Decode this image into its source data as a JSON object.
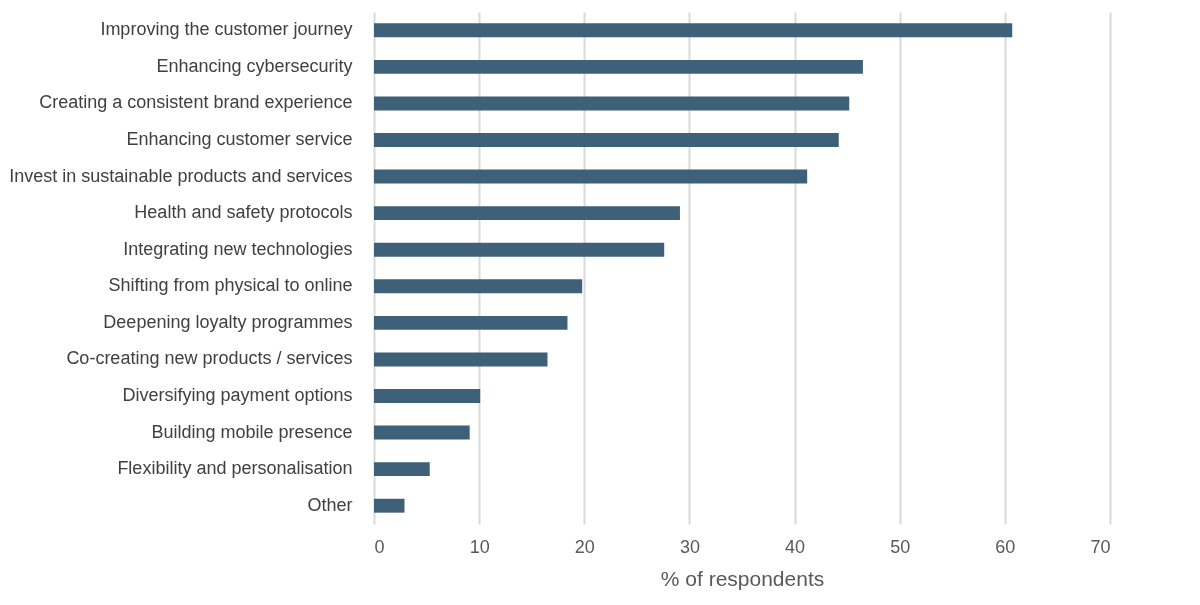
{
  "chart_data": {
    "type": "bar",
    "orientation": "horizontal",
    "xlabel": "% of respondents",
    "categories": [
      "Improving the customer journey",
      "Enhancing cybersecurity",
      "Creating a consistent brand experience",
      "Enhancing customer service",
      "Invest in sustainable products and services",
      "Health and safety protocols",
      "Integrating new technologies",
      "Shifting from physical to online",
      "Deepening loyalty programmes",
      "Co-creating new products / services",
      "Diversifying payment options",
      "Building mobile presence",
      "Flexibility and personalisation",
      "Other"
    ],
    "values": [
      60.7,
      46.5,
      45.2,
      44.2,
      41.2,
      29.1,
      27.6,
      19.8,
      18.4,
      16.5,
      10.1,
      9.1,
      5.3,
      2.9
    ],
    "color": "#3f6079",
    "xlim": [
      0,
      70
    ],
    "xticks": [
      0,
      10,
      20,
      30,
      40,
      50,
      60,
      70
    ],
    "grid": "x"
  }
}
